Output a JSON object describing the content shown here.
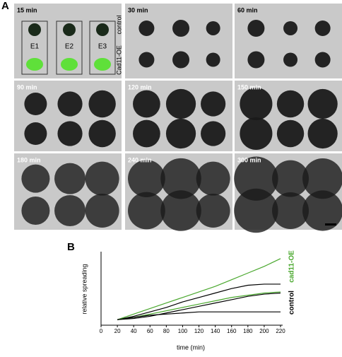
{
  "panel_a": {
    "label": "A",
    "images": [
      {
        "label": "15 min"
      },
      {
        "label": "30 min"
      },
      {
        "label": "60 min"
      },
      {
        "label": "90 min"
      },
      {
        "label": "120 min"
      },
      {
        "label": "150 min"
      },
      {
        "label": "180 min"
      },
      {
        "label": "240 min"
      },
      {
        "label": "300 min"
      }
    ],
    "insets": [
      "E1",
      "E2",
      "E3"
    ],
    "side_labels": [
      "Cad11-OE",
      "control"
    ]
  },
  "panel_b": {
    "label": "B"
  },
  "chart_data": {
    "type": "line",
    "x_label": "time (min)",
    "y_label": "relative spreading",
    "x": [
      20,
      40,
      60,
      80,
      100,
      120,
      140,
      160,
      180,
      200,
      220
    ],
    "series": [
      {
        "name": "control",
        "color": "#000000",
        "values": [
          1,
          1.3,
          1.7,
          2.1,
          2.6,
          3.0,
          3.4,
          3.8,
          4.1,
          4.2,
          4.2
        ]
      },
      {
        "name": "cad11-OE",
        "color": "#4aa82e",
        "values": [
          1,
          1.5,
          2.0,
          2.5,
          3.0,
          3.5,
          4.0,
          4.6,
          5.2,
          5.8,
          6.5
        ]
      },
      {
        "name": "control",
        "color": "#000000",
        "values": [
          1,
          1.1,
          1.3,
          1.6,
          1.9,
          2.2,
          2.5,
          2.8,
          3.1,
          3.3,
          3.4
        ]
      },
      {
        "name": "cad11-OE",
        "color": "#4aa82e",
        "values": [
          1,
          1.2,
          1.5,
          1.8,
          2.1,
          2.4,
          2.7,
          3.0,
          3.2,
          3.4,
          3.5
        ]
      },
      {
        "name": "control",
        "color": "#000000",
        "values": [
          1,
          1.2,
          1.4,
          1.5,
          1.6,
          1.7,
          1.7,
          1.7,
          1.7,
          1.7,
          1.7
        ]
      }
    ],
    "xlim": [
      0,
      220
    ],
    "xticks": [
      0,
      20,
      40,
      60,
      80,
      100,
      120,
      140,
      160,
      180,
      200,
      220
    ],
    "ylim": [
      0.5,
      7
    ]
  }
}
